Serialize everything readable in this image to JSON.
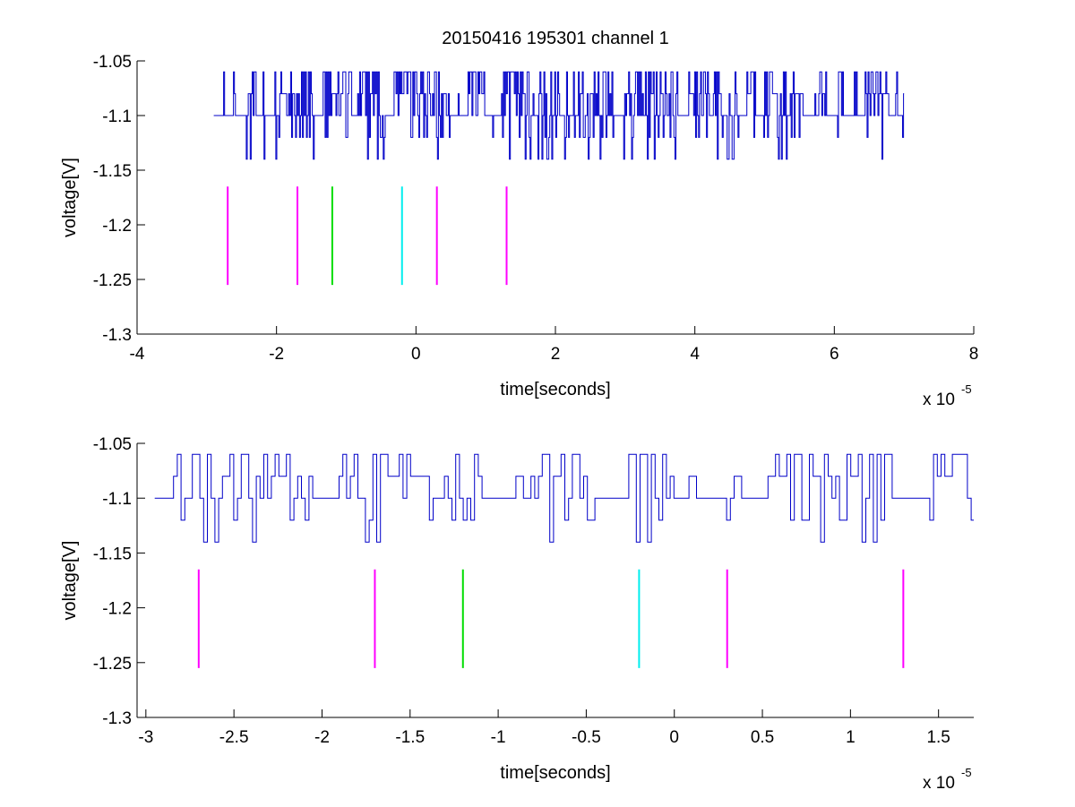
{
  "figure": {
    "title": "20150416 195301 channel 1",
    "background": "#ffffff",
    "trace_color": "#0000c8"
  },
  "chart_data": [
    {
      "type": "line",
      "title": "20150416 195301 channel 1",
      "xlabel": "time[seconds]",
      "ylabel": "voltage[V]",
      "x_exponent_label": "x 10",
      "x_exponent": "-5",
      "xlim": [
        -4,
        8
      ],
      "ylim": [
        -1.3,
        -1.05
      ],
      "xticks": [
        -4,
        -2,
        0,
        2,
        4,
        6,
        8
      ],
      "xtick_labels": [
        "-4",
        "-2",
        "0",
        "2",
        "4",
        "6",
        "8"
      ],
      "yticks": [
        -1.3,
        -1.25,
        -1.2,
        -1.15,
        -1.1,
        -1.05
      ],
      "ytick_labels": [
        "-1.3",
        "-1.25",
        "-1.2",
        "-1.15",
        "-1.1",
        "-1.05"
      ],
      "grid": false,
      "series": [
        {
          "color": "#0000c8",
          "x_range": [
            -2.9,
            7.0
          ],
          "levels": [
            -1.06,
            -1.08,
            -1.1,
            -1.12,
            -1.14
          ],
          "baseline": -1.1
        }
      ],
      "markers": [
        {
          "x": -2.7,
          "color": "#ff00ff",
          "y_range": [
            -1.255,
            -1.165
          ]
        },
        {
          "x": -1.7,
          "color": "#ff00ff",
          "y_range": [
            -1.255,
            -1.165
          ]
        },
        {
          "x": -1.2,
          "color": "#00dd00",
          "y_range": [
            -1.255,
            -1.165
          ]
        },
        {
          "x": -0.2,
          "color": "#00eeee",
          "y_range": [
            -1.255,
            -1.165
          ]
        },
        {
          "x": 0.3,
          "color": "#ff00ff",
          "y_range": [
            -1.255,
            -1.165
          ]
        },
        {
          "x": 1.3,
          "color": "#ff00ff",
          "y_range": [
            -1.255,
            -1.165
          ]
        }
      ]
    },
    {
      "type": "line",
      "title": "",
      "xlabel": "time[seconds]",
      "ylabel": "voltage[V]",
      "x_exponent_label": "x 10",
      "x_exponent": "-5",
      "xlim": [
        -3.05,
        1.7
      ],
      "ylim": [
        -1.3,
        -1.05
      ],
      "xticks": [
        -3,
        -2.5,
        -2,
        -1.5,
        -1,
        -0.5,
        0,
        0.5,
        1,
        1.5
      ],
      "xtick_labels": [
        "-3",
        "-2.5",
        "-2",
        "-1.5",
        "-1",
        "-0.5",
        "0",
        "0.5",
        "1",
        "1.5"
      ],
      "yticks": [
        -1.3,
        -1.25,
        -1.2,
        -1.15,
        -1.1,
        -1.05
      ],
      "ytick_labels": [
        "-1.3",
        "-1.25",
        "-1.2",
        "-1.15",
        "-1.1",
        "-1.05"
      ],
      "grid": false,
      "series": [
        {
          "color": "#0000c8",
          "x_range": [
            -2.95,
            1.7
          ],
          "levels": [
            -1.06,
            -1.08,
            -1.1,
            -1.12,
            -1.14
          ],
          "baseline": -1.1
        }
      ],
      "markers": [
        {
          "x": -2.7,
          "color": "#ff00ff",
          "y_range": [
            -1.255,
            -1.165
          ]
        },
        {
          "x": -1.7,
          "color": "#ff00ff",
          "y_range": [
            -1.255,
            -1.165
          ]
        },
        {
          "x": -1.2,
          "color": "#00dd00",
          "y_range": [
            -1.255,
            -1.165
          ]
        },
        {
          "x": -0.2,
          "color": "#00eeee",
          "y_range": [
            -1.255,
            -1.165
          ]
        },
        {
          "x": 0.3,
          "color": "#ff00ff",
          "y_range": [
            -1.255,
            -1.165
          ]
        },
        {
          "x": 1.3,
          "color": "#ff00ff",
          "y_range": [
            -1.255,
            -1.165
          ]
        }
      ]
    }
  ]
}
